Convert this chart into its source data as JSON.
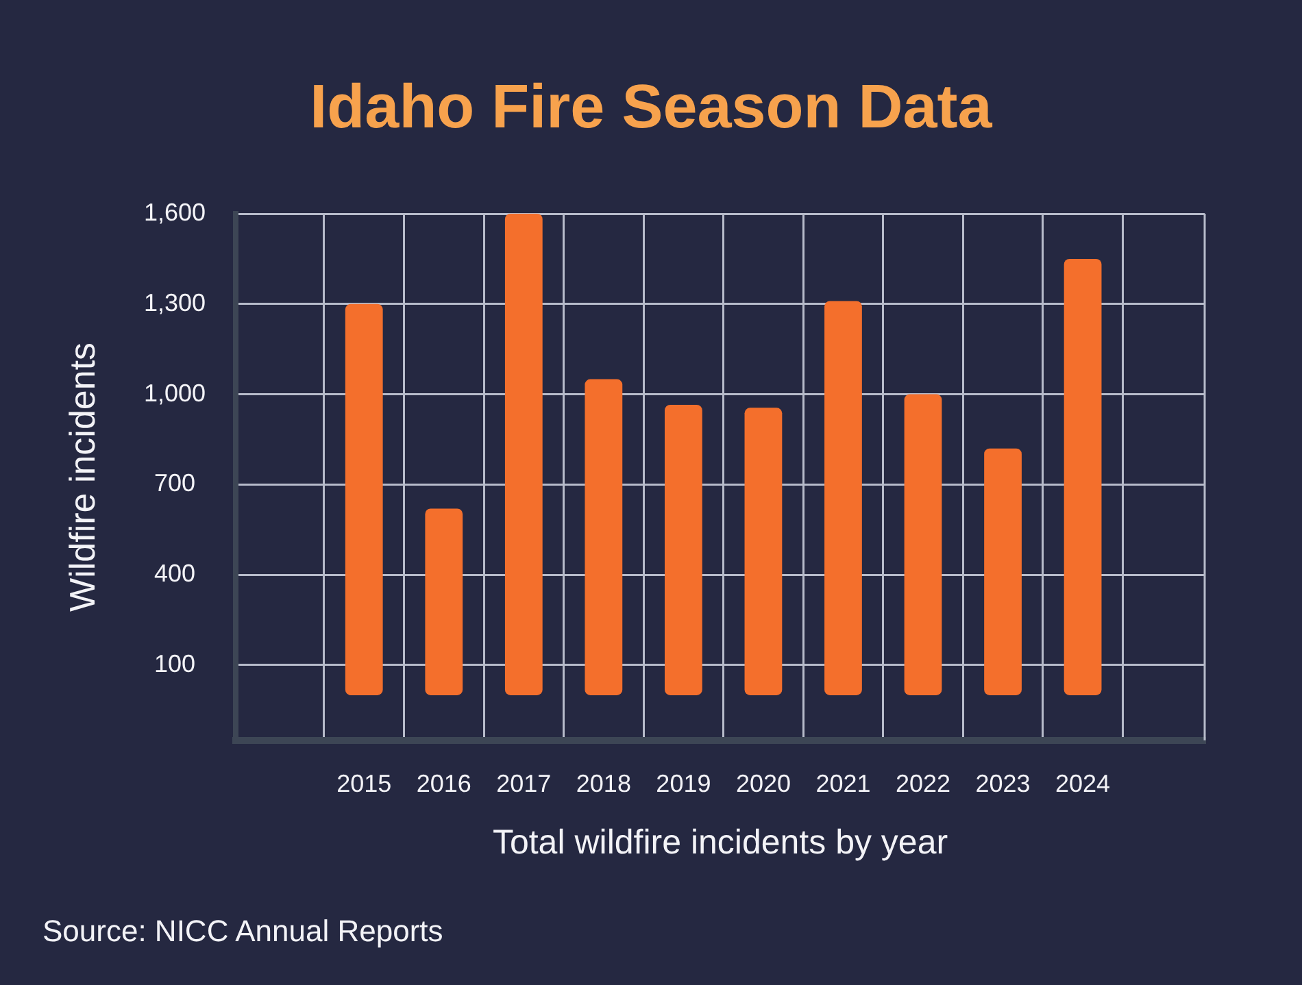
{
  "chart_data": {
    "type": "bar",
    "title": "Idaho Fire Season Data",
    "xlabel": "Total wildfire incidents by year",
    "ylabel": "Wildfire incidents",
    "categories": [
      "2015",
      "2016",
      "2017",
      "2018",
      "2019",
      "2020",
      "2021",
      "2022",
      "2023",
      "2024"
    ],
    "values": [
      1300,
      620,
      1600,
      1050,
      965,
      955,
      1310,
      1000,
      820,
      1450
    ],
    "color": "#f46f2c",
    "ylim": [
      -150,
      1600
    ],
    "yticks": [
      100,
      400,
      700,
      {
        "value": 1000,
        "label": "1,000"
      },
      {
        "value": 1300,
        "label": "1,300"
      },
      {
        "value": 1600,
        "label": "1,600"
      }
    ],
    "grid": true,
    "annotations": [
      "Source: NICC Annual Reports"
    ]
  }
}
